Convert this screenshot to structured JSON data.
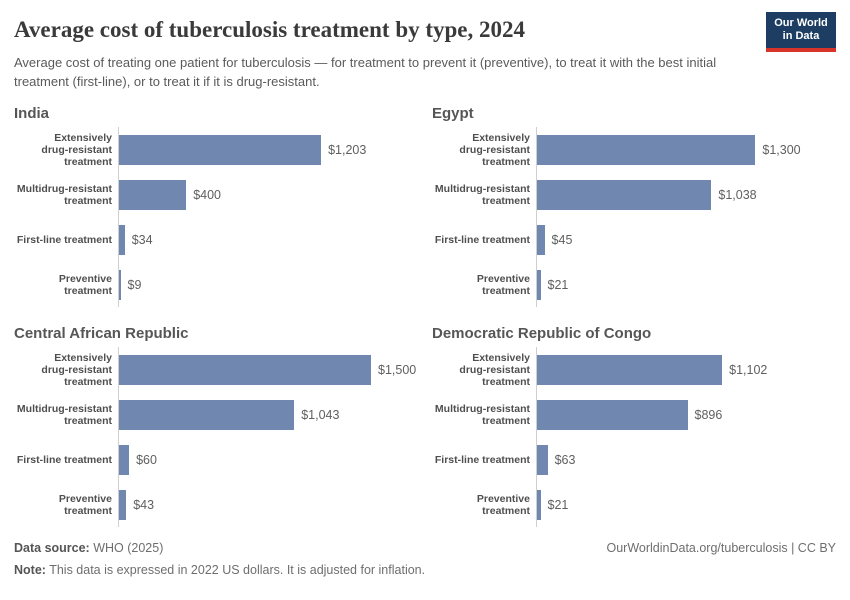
{
  "header": {
    "title": "Average cost of tuberculosis treatment by type, 2024",
    "subtitle": "Average cost of treating one patient for tuberculosis — for treatment to prevent it (preventive), to treat it with the best initial treatment (first-line), or to treat it if it is drug-resistant.",
    "logo": {
      "line1": "Our World",
      "line2": "in Data"
    }
  },
  "chart_data": {
    "type": "bar",
    "orientation": "horizontal",
    "year": "2024",
    "unit": "2022 US dollars",
    "axis_max": 1500,
    "grid": false,
    "legend": "none",
    "categories": [
      "Extensively drug-resistant treatment",
      "Multidrug-resistant treatment",
      "First-line treatment",
      "Preventive treatment"
    ],
    "category_display": [
      "Extensively\ndrug-resistant\ntreatment",
      "Multidrug-resistant\ntreatment",
      "First-line treatment",
      "Preventive\ntreatment"
    ],
    "facets": [
      {
        "country": "India",
        "rows": [
          {
            "value": 1203,
            "label": "$1,203"
          },
          {
            "value": 400,
            "label": "$400"
          },
          {
            "value": 34,
            "label": "$34"
          },
          {
            "value": 9,
            "label": "$9"
          }
        ]
      },
      {
        "country": "Egypt",
        "rows": [
          {
            "value": 1300,
            "label": "$1,300"
          },
          {
            "value": 1038,
            "label": "$1,038"
          },
          {
            "value": 45,
            "label": "$45"
          },
          {
            "value": 21,
            "label": "$21"
          }
        ]
      },
      {
        "country": "Central African Republic",
        "rows": [
          {
            "value": 1500,
            "label": "$1,500"
          },
          {
            "value": 1043,
            "label": "$1,043"
          },
          {
            "value": 60,
            "label": "$60"
          },
          {
            "value": 43,
            "label": "$43"
          }
        ]
      },
      {
        "country": "Democratic Republic of Congo",
        "rows": [
          {
            "value": 1102,
            "label": "$1,102"
          },
          {
            "value": 896,
            "label": "$896"
          },
          {
            "value": 63,
            "label": "$63"
          },
          {
            "value": 21,
            "label": "$21"
          }
        ]
      }
    ]
  },
  "footer": {
    "source_label": "Data source:",
    "source_value": " WHO (2025)",
    "note_label": "Note:",
    "note_value": " This data is expressed in 2022 US dollars. It is adjusted for inflation.",
    "credit": "OurWorldinData.org/tuberculosis | CC BY"
  },
  "colors": {
    "bar": "#7088b0",
    "logo_navy": "#1d3d63",
    "logo_red": "#d8352a",
    "axis_line": "#cfcfcf"
  }
}
